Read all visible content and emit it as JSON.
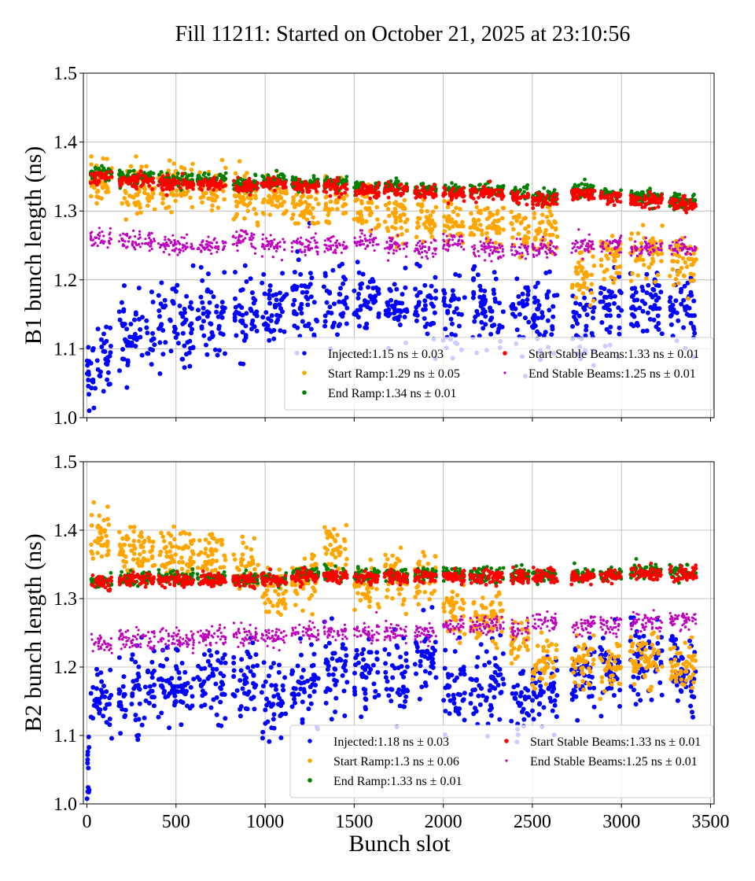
{
  "title": "Fill 11211: Started on October 21, 2025 at 23:10:56",
  "chart_data": {
    "type": "scatter",
    "xlabel": "Bunch slot",
    "xlim": [
      -20,
      3520
    ],
    "xticks": [
      "0",
      "500",
      "1000",
      "1500",
      "2000",
      "2500",
      "3000",
      "3500"
    ],
    "xtick_values": [
      0,
      500,
      1000,
      1500,
      2000,
      2500,
      3000,
      3500
    ],
    "grid": true,
    "legend_placement": "lower-right",
    "colors": {
      "Injected": "#0000ff",
      "Start Ramp": "#ffa500",
      "End Ramp": "#008000",
      "Start Stable Beams": "#ff0000",
      "End Stable Beams": "#bf00bf"
    },
    "train_slots": [
      [
        20,
        140
      ],
      [
        180,
        380
      ],
      [
        400,
        600
      ],
      [
        620,
        780
      ],
      [
        820,
        960
      ],
      [
        980,
        1120
      ],
      [
        1150,
        1300
      ],
      [
        1330,
        1460
      ],
      [
        1500,
        1640
      ],
      [
        1670,
        1800
      ],
      [
        1840,
        1960
      ],
      [
        2000,
        2120
      ],
      [
        2150,
        2340
      ],
      [
        2380,
        2480
      ],
      [
        2500,
        2640
      ],
      [
        2720,
        2850
      ],
      [
        2880,
        3000
      ],
      [
        3050,
        3230
      ],
      [
        3270,
        3420
      ]
    ],
    "panels": [
      {
        "ylabel": "B1 bunch length (ns)",
        "ylim": [
          1.0,
          1.5
        ],
        "yticks": [
          "1.0",
          "1.1",
          "1.2",
          "1.3",
          "1.4",
          "1.5"
        ],
        "ytick_values": [
          1.0,
          1.1,
          1.2,
          1.3,
          1.4,
          1.5
        ],
        "series": [
          {
            "name": "Injected",
            "legend": "Injected:1.15 ns ± 0.03",
            "train_means": [
              1.1,
              1.12,
              1.14,
              1.15,
              1.15,
              1.16,
              1.17,
              1.17,
              1.17,
              1.16,
              1.16,
              1.15,
              1.16,
              1.15,
              1.15,
              1.13,
              1.16,
              1.17,
              1.16
            ]
          },
          {
            "name": "Start Ramp",
            "legend": "Start Ramp:1.29 ns ± 0.05",
            "train_means": [
              1.34,
              1.33,
              1.335,
              1.33,
              1.32,
              1.32,
              1.31,
              1.31,
              1.3,
              1.29,
              1.29,
              1.28,
              1.28,
              1.265,
              1.265,
              1.21,
              1.23,
              1.24,
              1.22
            ]
          },
          {
            "name": "End Ramp",
            "legend": "End Ramp:1.34 ns ± 0.01",
            "train_means": [
              1.355,
              1.35,
              1.345,
              1.345,
              1.34,
              1.345,
              1.34,
              1.34,
              1.335,
              1.335,
              1.33,
              1.33,
              1.33,
              1.325,
              1.32,
              1.33,
              1.325,
              1.32,
              1.315
            ]
          },
          {
            "name": "Start Stable Beams",
            "legend": "Start Stable Beams:1.33 ns ± 0.01",
            "train_means": [
              1.35,
              1.345,
              1.34,
              1.34,
              1.335,
              1.34,
              1.335,
              1.335,
              1.33,
              1.33,
              1.325,
              1.325,
              1.325,
              1.32,
              1.315,
              1.325,
              1.32,
              1.315,
              1.31
            ]
          },
          {
            "name": "End Stable Beams",
            "legend": "End Stable Beams:1.25 ns ± 0.01",
            "train_means": [
              1.26,
              1.255,
              1.25,
              1.25,
              1.26,
              1.25,
              1.25,
              1.25,
              1.255,
              1.25,
              1.245,
              1.255,
              1.245,
              1.245,
              1.245,
              1.25,
              1.25,
              1.245,
              1.245
            ]
          }
        ]
      },
      {
        "ylabel": "B2 bunch length (ns)",
        "ylim": [
          1.0,
          1.5
        ],
        "yticks": [
          "1.0",
          "1.1",
          "1.2",
          "1.3",
          "1.4",
          "1.5"
        ],
        "ytick_values": [
          1.0,
          1.1,
          1.2,
          1.3,
          1.4,
          1.5
        ],
        "series": [
          {
            "name": "Injected",
            "legend": "Injected:1.18 ns ± 0.03",
            "train_means": [
              1.16,
              1.16,
              1.17,
              1.18,
              1.17,
              1.15,
              1.17,
              1.2,
              1.19,
              1.19,
              1.21,
              1.17,
              1.17,
              1.15,
              1.16,
              1.19,
              1.2,
              1.21,
              1.19
            ]
          },
          {
            "name": "Start Ramp",
            "legend": "Start Ramp:1.3 ns ± 0.06",
            "train_means": [
              1.39,
              1.37,
              1.365,
              1.36,
              1.35,
              1.31,
              1.33,
              1.37,
              1.32,
              1.33,
              1.33,
              1.28,
              1.27,
              1.23,
              1.2,
              1.21,
              1.2,
              1.21,
              1.2
            ]
          },
          {
            "name": "End Ramp",
            "legend": "End Ramp:1.33 ns ± 0.01",
            "train_means": [
              1.325,
              1.33,
              1.33,
              1.33,
              1.33,
              1.33,
              1.335,
              1.335,
              1.335,
              1.335,
              1.335,
              1.335,
              1.335,
              1.335,
              1.335,
              1.335,
              1.335,
              1.34,
              1.34
            ]
          },
          {
            "name": "Start Stable Beams",
            "legend": "Start Stable Beams:1.33 ns ± 0.01",
            "train_means": [
              1.322,
              1.327,
              1.327,
              1.327,
              1.327,
              1.327,
              1.332,
              1.332,
              1.332,
              1.332,
              1.332,
              1.332,
              1.332,
              1.332,
              1.332,
              1.332,
              1.332,
              1.337,
              1.337
            ]
          },
          {
            "name": "End Stable Beams",
            "legend": "End Stable Beams:1.25 ns ± 0.01",
            "train_means": [
              1.235,
              1.24,
              1.24,
              1.245,
              1.245,
              1.245,
              1.25,
              1.25,
              1.25,
              1.25,
              1.25,
              1.26,
              1.26,
              1.255,
              1.265,
              1.26,
              1.26,
              1.265,
              1.27
            ]
          }
        ]
      }
    ]
  }
}
